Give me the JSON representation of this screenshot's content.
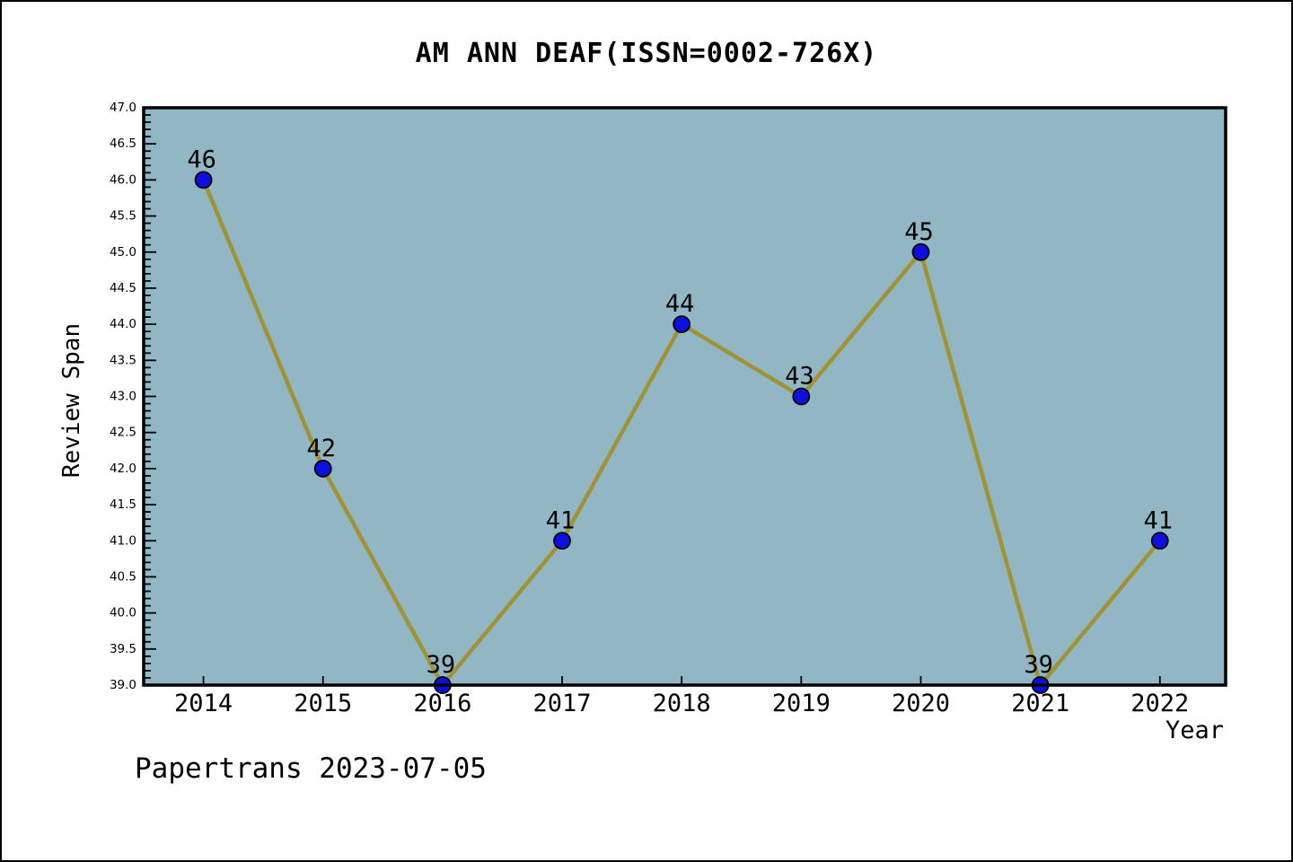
{
  "page": {
    "footer": "Papertrans 2023-07-05"
  },
  "chart_data": {
    "type": "line",
    "title": "AM ANN DEAF(ISSN=0002-726X)",
    "xlabel": "Year",
    "ylabel": "Review Span",
    "x": [
      2014,
      2015,
      2016,
      2017,
      2018,
      2019,
      2020,
      2021,
      2022
    ],
    "series": [
      {
        "name": "Review Span",
        "values": [
          46,
          42,
          39,
          41,
          44,
          43,
          45,
          39,
          41
        ]
      }
    ],
    "point_labels": [
      "46",
      "42",
      "39",
      "41",
      "44",
      "43",
      "45",
      "39",
      "41"
    ],
    "ylim": [
      39.0,
      47.0
    ],
    "xlim": [
      2013.5,
      2022.55
    ],
    "y_major_step": 0.5,
    "y_minor_step": 0.1,
    "grid": false,
    "legend": "none",
    "colors": {
      "plot_background": "#91b6c4",
      "line": "#a39233",
      "marker_fill": "#0e0ee0",
      "marker_edge": "#000000",
      "axis": "#000000",
      "text": "#000000",
      "page_background": "#ffffff"
    }
  }
}
